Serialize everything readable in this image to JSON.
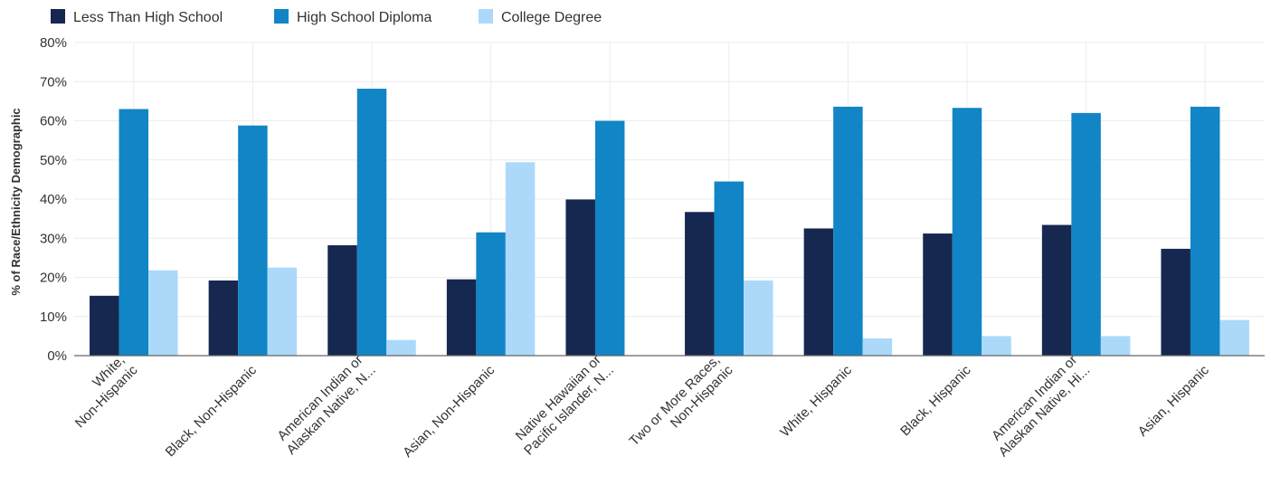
{
  "chart_data": {
    "type": "bar",
    "ylabel": "% of Race/Ethnicity Demographic",
    "ylim": [
      0,
      80
    ],
    "yticks": [
      "0%",
      "10%",
      "20%",
      "30%",
      "40%",
      "50%",
      "60%",
      "70%",
      "80%"
    ],
    "grid": true,
    "legend_position": "top-left",
    "categories": [
      [
        "White,",
        "Non-Hispanic"
      ],
      [
        "Black, Non-Hispanic"
      ],
      [
        "American Indian or",
        "Alaskan Native, N..."
      ],
      [
        "Asian, Non-Hispanic"
      ],
      [
        "Native Hawaiian or",
        "Pacific Islander, N..."
      ],
      [
        "Two or More Races,",
        "Non-Hispanic"
      ],
      [
        "White, Hispanic"
      ],
      [
        "Black, Hispanic"
      ],
      [
        "American Indian or",
        "Alaskan Native, Hi..."
      ],
      [
        "Asian, Hispanic"
      ]
    ],
    "series": [
      {
        "name": "Less Than High School",
        "color": "#16284f",
        "values": [
          15.3,
          19.2,
          28.2,
          19.5,
          39.9,
          36.7,
          32.5,
          31.2,
          33.4,
          27.3
        ]
      },
      {
        "name": "High School Diploma",
        "color": "#1185c6",
        "values": [
          63.0,
          58.8,
          68.2,
          31.5,
          60.0,
          44.5,
          63.6,
          63.3,
          62.0,
          63.6
        ]
      },
      {
        "name": "College Degree",
        "color": "#acd9fa",
        "values": [
          21.8,
          22.5,
          4.0,
          49.4,
          0,
          19.2,
          4.4,
          5.0,
          5.0,
          9.1
        ]
      }
    ]
  }
}
